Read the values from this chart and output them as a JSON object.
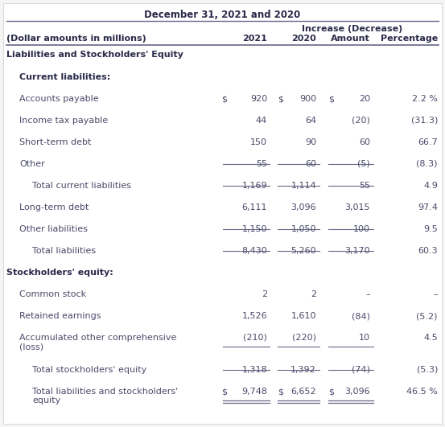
{
  "title": "December 31, 2021 and 2020",
  "header_increase": "Increase (Decrease)",
  "col_headers": [
    "(Dollar amounts in millions)",
    "2021",
    "2020",
    "Amount",
    "Percentage"
  ],
  "background_color": "#f5f5f5",
  "text_color": "#4a4a6a",
  "bold_color": "#2a2a4a",
  "line_color": "#666688",
  "rows": [
    {
      "label": "Liabilities and Stockholders' Equity",
      "type": "section_header",
      "indent": 0
    },
    {
      "label": "Current liabilities:",
      "type": "subsection_header",
      "indent": 1
    },
    {
      "label": "Accounts payable",
      "type": "data",
      "indent": 1,
      "prefix1": "$",
      "prefix2": "$",
      "prefix3": "$",
      "v2021": "920",
      "v2020": "900",
      "amount": "20",
      "pct": "2.2 %"
    },
    {
      "label": "Income tax payable",
      "type": "data",
      "indent": 1,
      "v2021": "44",
      "v2020": "64",
      "amount": "(20)",
      "pct": "(31.3)"
    },
    {
      "label": "Short-term debt",
      "type": "data",
      "indent": 1,
      "v2021": "150",
      "v2020": "90",
      "amount": "60",
      "pct": "66.7"
    },
    {
      "label": "Other",
      "type": "data_ul",
      "indent": 1,
      "v2021": "55",
      "v2020": "60",
      "amount": "(5)",
      "pct": "(8.3)"
    },
    {
      "label": "Total current liabilities",
      "type": "total",
      "indent": 2,
      "v2021": "1,169",
      "v2020": "1,114",
      "amount": "55",
      "pct": "4.9"
    },
    {
      "label": "Long-term debt",
      "type": "data",
      "indent": 1,
      "v2021": "6,111",
      "v2020": "3,096",
      "amount": "3,015",
      "pct": "97.4"
    },
    {
      "label": "Other liabilities",
      "type": "data_ul",
      "indent": 1,
      "v2021": "1,150",
      "v2020": "1,050",
      "amount": "100",
      "pct": "9.5"
    },
    {
      "label": "Total liabilities",
      "type": "total",
      "indent": 2,
      "v2021": "8,430",
      "v2020": "5,260",
      "amount": "3,170",
      "pct": "60.3"
    },
    {
      "label": "Stockholders' equity:",
      "type": "subsection_header",
      "indent": 0
    },
    {
      "label": "Common stock",
      "type": "data",
      "indent": 1,
      "v2021": "2",
      "v2020": "2",
      "amount": "–",
      "pct": "–"
    },
    {
      "label": "Retained earnings",
      "type": "data",
      "indent": 1,
      "v2021": "1,526",
      "v2020": "1,610",
      "amount": "(84)",
      "pct": "(5.2)"
    },
    {
      "label": "Accumulated other comprehensive\n(loss)",
      "type": "data_ul_2line",
      "indent": 1,
      "v2021": "(210)",
      "v2020": "(220)",
      "amount": "10",
      "pct": "4.5"
    },
    {
      "label": "Total stockholders' equity",
      "type": "total",
      "indent": 2,
      "v2021": "1,318",
      "v2020": "1,392",
      "amount": "(74)",
      "pct": "(5.3)"
    },
    {
      "label": "Total liabilities and stockholders'\nequity",
      "type": "grand_total",
      "indent": 2,
      "prefix1": "$",
      "prefix2": "$",
      "prefix3": "$",
      "v2021": "9,748",
      "v2020": "6,652",
      "amount": "3,096",
      "pct": "46.5 %"
    }
  ]
}
